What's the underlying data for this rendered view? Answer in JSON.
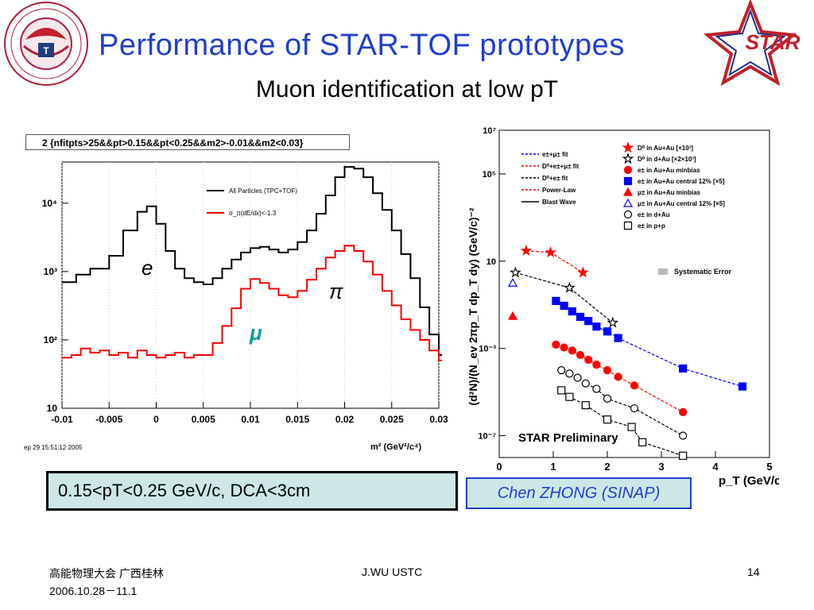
{
  "slide": {
    "title": "Performance of  STAR-TOF prototypes",
    "subtitle": "Muon identification at low pT",
    "condition_box": "0.15<pT<0.25 GeV/c, DCA<3cm",
    "author_box": "Chen ZHONG (SINAP)",
    "footer_left_1": "高能物理大会 广西桂林",
    "footer_left_2": "2006.10.28－11.1",
    "footer_center": "J.WU USTC",
    "page_number": "14",
    "star_logo_text": "STAR",
    "univ_logo_text": "UNIVERSITY OF SCIENCE AND TECHNOLOGY OF CHINA"
  },
  "chart_data": [
    {
      "type": "line",
      "cut_string": "2 {nfitpts>25&&pt>0.15&&pt<0.25&&m2>-0.01&&m2<0.03}",
      "timestamp": "ep 29 15:51:12 2005",
      "xlabel": "m² (GeV²/c⁴)",
      "xlim": [
        -0.01,
        0.03
      ],
      "ylim": [
        10,
        40000
      ],
      "yscale": "log",
      "x_ticks": [
        "-0.01",
        "-0.005",
        "0",
        "0.005",
        "0.01",
        "0.015",
        "0.02",
        "0.025",
        "0.03"
      ],
      "y_ticks": [
        "10",
        "10²",
        "10³",
        "10⁴"
      ],
      "legend": [
        "All Particles (TPC+TOF)",
        "σ_π(dE/dx)<-1.3"
      ],
      "annotations": [
        "e",
        "π",
        "μ"
      ],
      "series": [
        {
          "name": "All Particles (TPC+TOF)",
          "color": "#000000",
          "x": [
            -0.01,
            -0.0085,
            -0.007,
            -0.005,
            -0.0035,
            -0.002,
            -0.001,
            0.0,
            0.001,
            0.002,
            0.003,
            0.004,
            0.005,
            0.006,
            0.007,
            0.008,
            0.009,
            0.01,
            0.011,
            0.012,
            0.013,
            0.014,
            0.015,
            0.016,
            0.017,
            0.018,
            0.019,
            0.02,
            0.021,
            0.022,
            0.023,
            0.024,
            0.025,
            0.026,
            0.027,
            0.028,
            0.029,
            0.03
          ],
          "y": [
            700,
            900,
            1100,
            1700,
            4000,
            7500,
            9000,
            5000,
            2000,
            1100,
            800,
            700,
            650,
            800,
            1100,
            1500,
            1900,
            2200,
            2300,
            2100,
            1900,
            2100,
            2700,
            4000,
            7000,
            13000,
            24000,
            34000,
            32000,
            24000,
            14000,
            8000,
            4000,
            1800,
            800,
            300,
            120,
            60
          ]
        },
        {
          "name": "σ_π(dE/dx)<-1.3",
          "color": "#ff0000",
          "x": [
            -0.01,
            -0.009,
            -0.008,
            -0.007,
            -0.006,
            -0.005,
            -0.004,
            -0.003,
            -0.002,
            -0.001,
            0.0,
            0.001,
            0.002,
            0.003,
            0.004,
            0.005,
            0.006,
            0.007,
            0.008,
            0.009,
            0.01,
            0.011,
            0.012,
            0.013,
            0.014,
            0.015,
            0.016,
            0.017,
            0.018,
            0.019,
            0.02,
            0.021,
            0.022,
            0.023,
            0.024,
            0.025,
            0.026,
            0.027,
            0.028,
            0.029,
            0.03
          ],
          "y": [
            55,
            60,
            75,
            65,
            70,
            60,
            65,
            55,
            70,
            60,
            55,
            60,
            65,
            55,
            60,
            60,
            90,
            160,
            290,
            560,
            780,
            680,
            560,
            450,
            420,
            520,
            760,
            1100,
            1600,
            2000,
            2400,
            2000,
            1400,
            900,
            520,
            320,
            200,
            140,
            100,
            70,
            50
          ]
        }
      ]
    },
    {
      "type": "scatter",
      "title": "STAR Preliminary",
      "xlabel": "p_T (GeV/c)",
      "ylabel": "(d²N)/(N_ev 2πp_T dp_T dy) (GeV/c)⁻²",
      "xlim": [
        0,
        5
      ],
      "ylim": [
        1e-08,
        10000000.0
      ],
      "yscale": "log",
      "x_ticks": [
        "0",
        "1",
        "2",
        "3",
        "4",
        "5"
      ],
      "y_ticks": [
        "10⁷",
        "10⁵",
        "10",
        "10⁻³",
        "10⁻⁷"
      ],
      "legend_left": [
        "e±+μ± fit",
        "D⁰+e±+μ± fit",
        "D⁰+e± fit",
        "Power-Law",
        "Blast Wave"
      ],
      "legend_right": [
        "D⁰ in Au+Au [×10³]",
        "D⁰ in d+Au [×2×10³]",
        "e± in Au+Au minbias",
        "e± in Au+Au central 12% [×5]",
        "μ± in Au+Au minbias",
        "μ± in Au+Au central 12% [×5]",
        "e± in d+Au",
        "e± in p+p"
      ],
      "systematic_label": "Systematic Error",
      "series": [
        {
          "name": "D⁰ in Au+Au [×10³]",
          "color": "#ff0000",
          "x": [
            0.5,
            0.95,
            1.55
          ],
          "y": [
            30,
            25,
            3
          ]
        },
        {
          "name": "D⁰ in d+Au [×2×10³]",
          "color": "#000000",
          "x": [
            0.3,
            1.3,
            2.1
          ],
          "y": [
            3,
            0.6,
            0.015
          ]
        },
        {
          "name": "e± in Au+Au minbias",
          "color": "#ff0000",
          "x": [
            1.05,
            1.2,
            1.35,
            1.5,
            1.65,
            1.8,
            2.0,
            2.2,
            2.5,
            3.4
          ],
          "y": [
            0.0015,
            0.0011,
            0.0008,
            0.0005,
            0.0003,
            0.00018,
            0.0001,
            5e-05,
            2e-05,
            1.2e-06
          ]
        },
        {
          "name": "e± in Au+Au central 12% [×5]",
          "color": "#0000ff",
          "x": [
            1.05,
            1.2,
            1.35,
            1.5,
            1.65,
            1.8,
            2.0,
            2.2,
            3.4,
            4.5
          ],
          "y": [
            0.15,
            0.09,
            0.05,
            0.028,
            0.018,
            0.01,
            0.006,
            0.003,
            0.00012,
            1.8e-05
          ]
        },
        {
          "name": "μ± in Au+Au minbias",
          "color": "#ff0000",
          "x": [
            0.25
          ],
          "y": [
            0.03
          ]
        },
        {
          "name": "μ± in Au+Au central 12% [×5]",
          "color": "#0000ff",
          "x": [
            0.25
          ],
          "y": [
            1.0
          ]
        },
        {
          "name": "e± in d+Au",
          "color": "#000000",
          "x": [
            1.15,
            1.3,
            1.45,
            1.6,
            1.8,
            2.0,
            2.5,
            3.4
          ],
          "y": [
            0.0001,
            7e-05,
            4.5e-05,
            2.5e-05,
            1.4e-05,
            5e-06,
            1.8e-06,
            1e-07
          ]
        },
        {
          "name": "e± in p+p",
          "color": "#000000",
          "x": [
            1.15,
            1.3,
            1.6,
            2.0,
            2.45,
            2.65,
            3.4
          ],
          "y": [
            1.2e-05,
            6e-06,
            2.5e-06,
            5.5e-07,
            2.5e-07,
            5e-08,
            1.2e-08
          ]
        }
      ]
    }
  ]
}
